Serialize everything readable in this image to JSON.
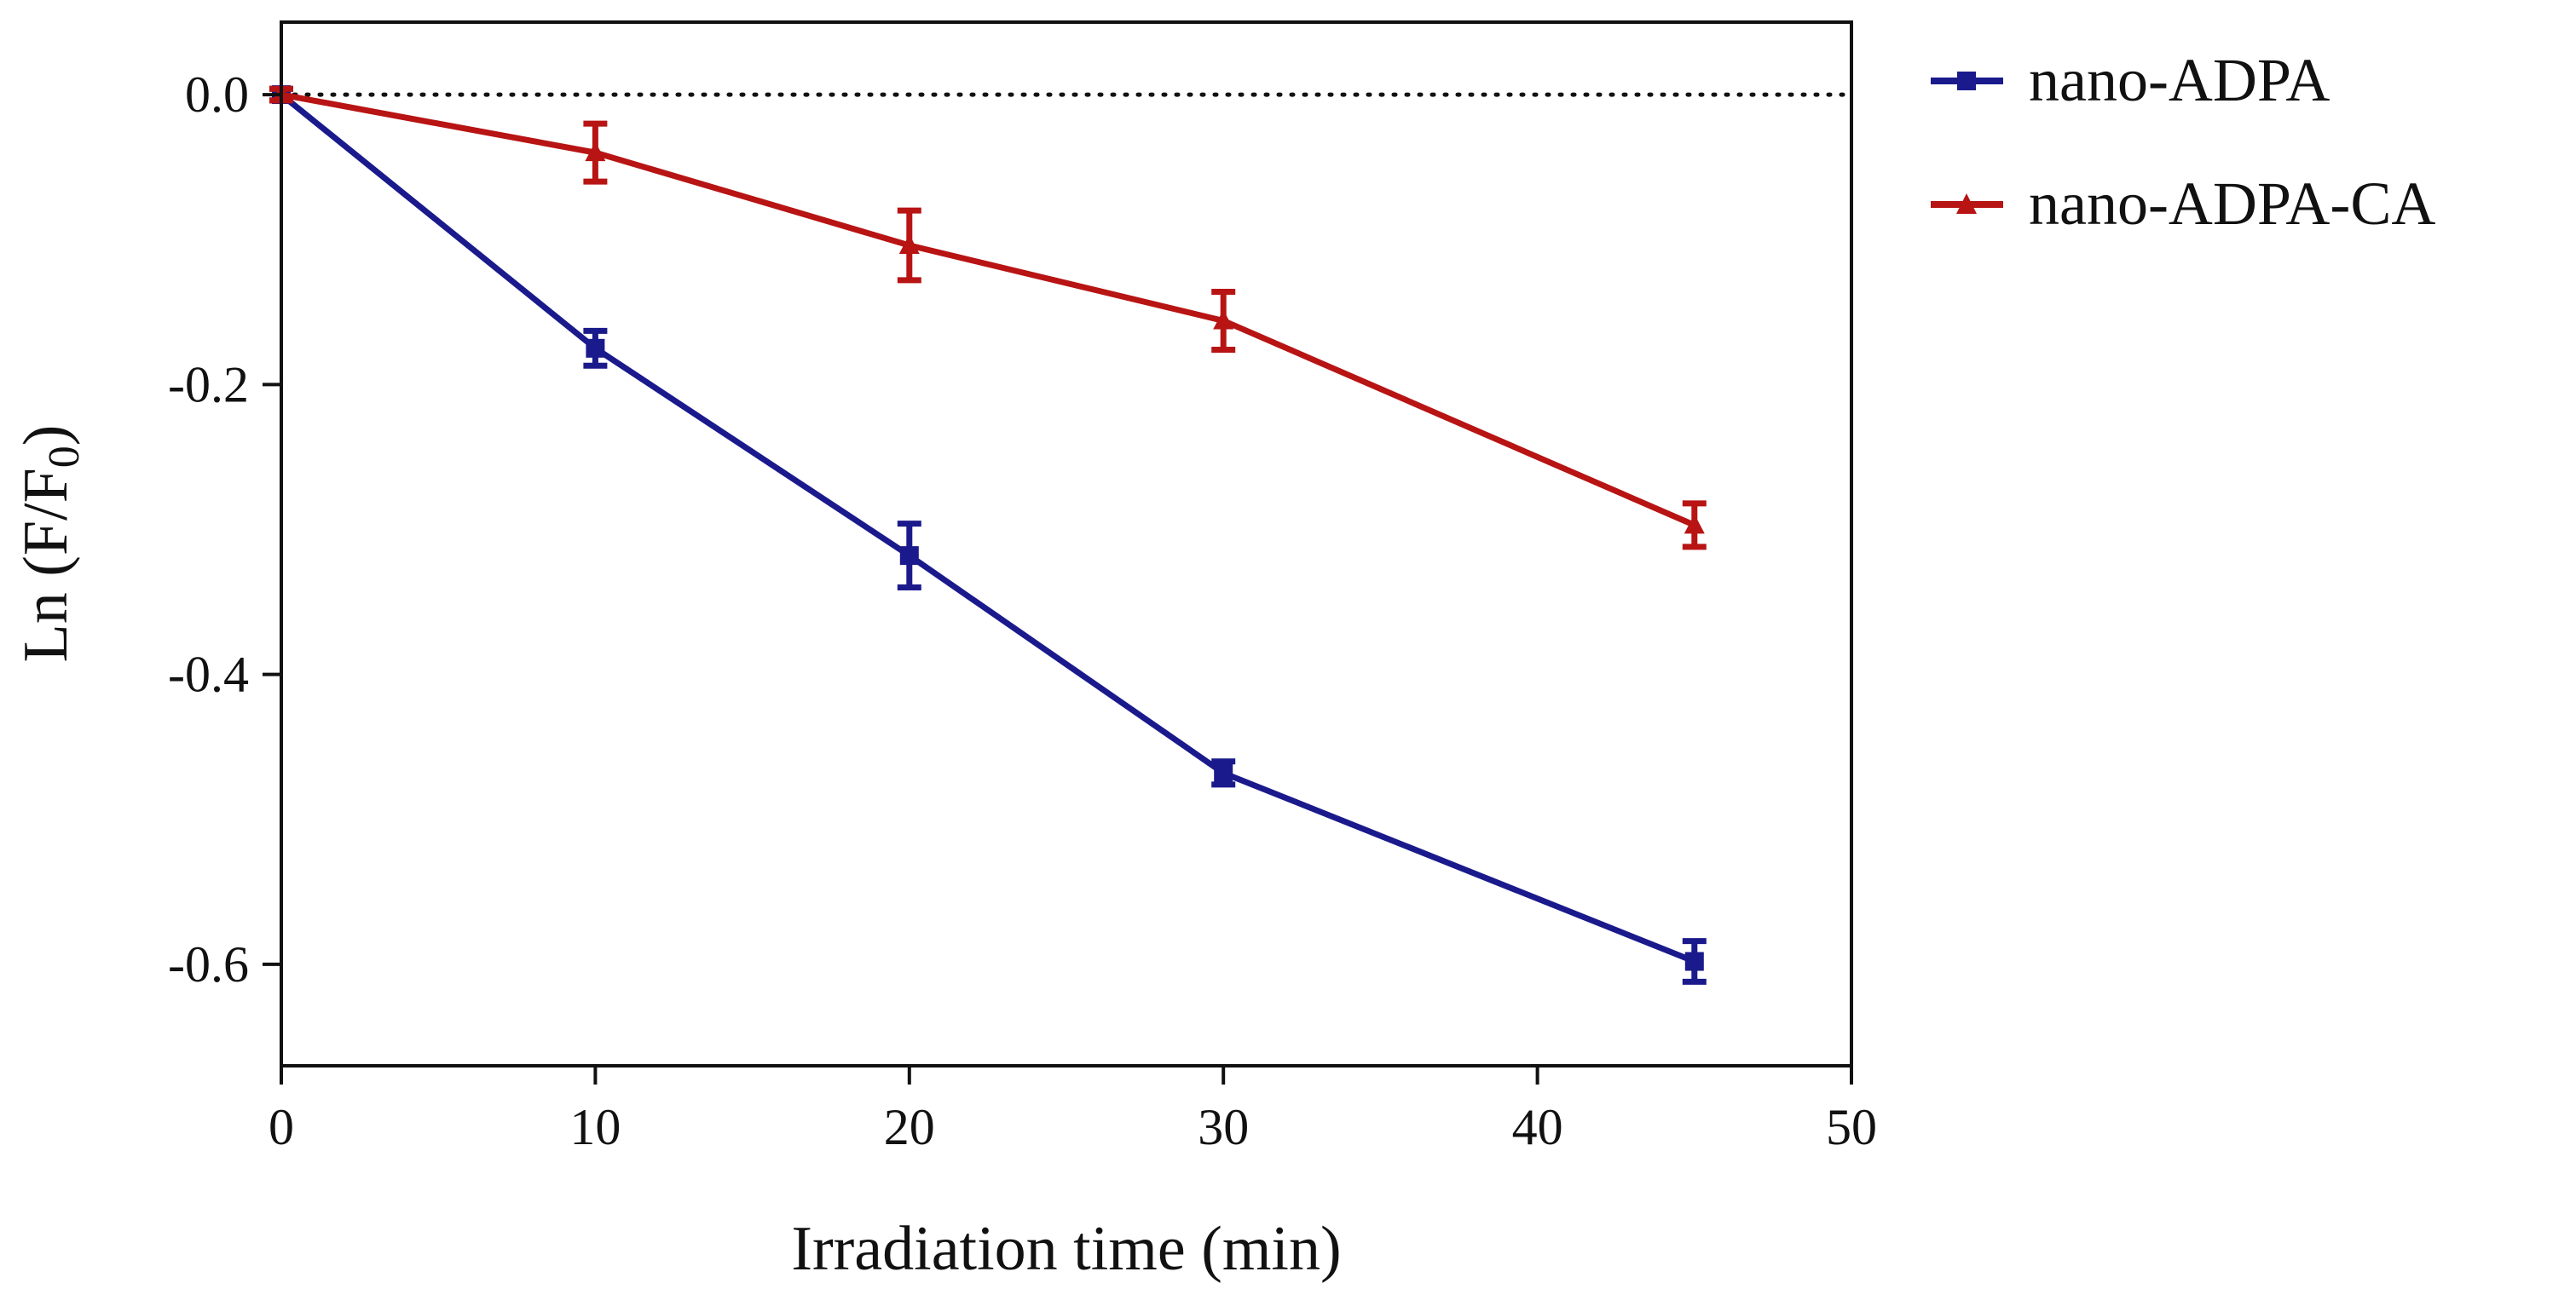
{
  "chart_data": {
    "type": "line",
    "xlabel": "Irradiation time (min)",
    "ylabel_main": "Ln (F/F",
    "ylabel_sub": "0",
    "ylabel_close": ")",
    "xlim": [
      0,
      50
    ],
    "ylim": [
      -0.67,
      0.05
    ],
    "x_ticks": [
      0,
      10,
      20,
      30,
      40,
      50
    ],
    "x_tick_labels": [
      "0",
      "10",
      "20",
      "30",
      "40",
      "50"
    ],
    "y_ticks": [
      0.0,
      -0.2,
      -0.4,
      -0.6
    ],
    "y_tick_labels": [
      "0.0",
      "-0.2",
      "-0.4",
      "-0.6"
    ],
    "reference_line": {
      "y": 0,
      "style": "dotted"
    },
    "legend_position": "right, outside plot",
    "grid": false,
    "series": [
      {
        "name": "nano-ADPA",
        "color": "#1a1a8c",
        "marker": "square",
        "x": [
          0,
          10,
          20,
          30,
          45
        ],
        "y": [
          0.0,
          -0.175,
          -0.318,
          -0.468,
          -0.598
        ],
        "err": [
          0.004,
          0.012,
          0.022,
          0.008,
          0.014
        ]
      },
      {
        "name": "nano-ADPA-CA",
        "color": "#b81414",
        "marker": "triangle",
        "x": [
          0,
          10,
          20,
          30,
          45
        ],
        "y": [
          0.0,
          -0.04,
          -0.104,
          -0.156,
          -0.297
        ],
        "err": [
          0.004,
          0.02,
          0.024,
          0.02,
          0.015
        ]
      }
    ]
  }
}
